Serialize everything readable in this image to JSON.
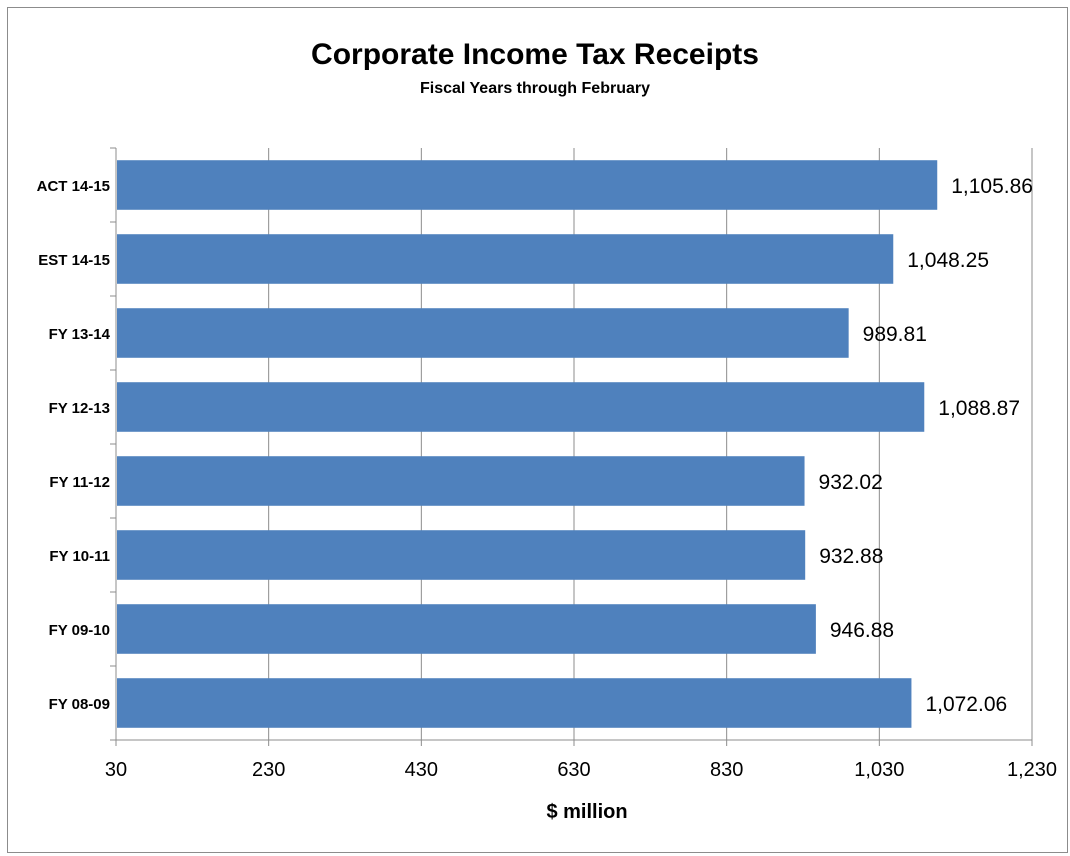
{
  "chart_data": {
    "type": "bar",
    "orientation": "horizontal",
    "title": "Corporate Income Tax Receipts",
    "subtitle": "Fiscal Years through February",
    "xlabel": "$ million",
    "ylabel": "",
    "xlim": [
      30,
      1230
    ],
    "x_ticks": [
      "30",
      "230",
      "430",
      "630",
      "830",
      "1,030",
      "1,230"
    ],
    "grid": "vertical",
    "legend": "none",
    "bar_color": "#4f81bd",
    "categories": [
      "ACT 14-15",
      "EST 14-15",
      "FY 13-14",
      "FY 12-13",
      "FY 11-12",
      "FY 10-11",
      "FY 09-10",
      "FY 08-09"
    ],
    "values": [
      1105.86,
      1048.25,
      989.81,
      1088.87,
      932.02,
      932.88,
      946.88,
      1072.06
    ],
    "value_labels": [
      "1,105.86",
      "1,048.25",
      "989.81",
      "1,088.87",
      "932.02",
      "932.88",
      "946.88",
      "1,072.06"
    ]
  }
}
